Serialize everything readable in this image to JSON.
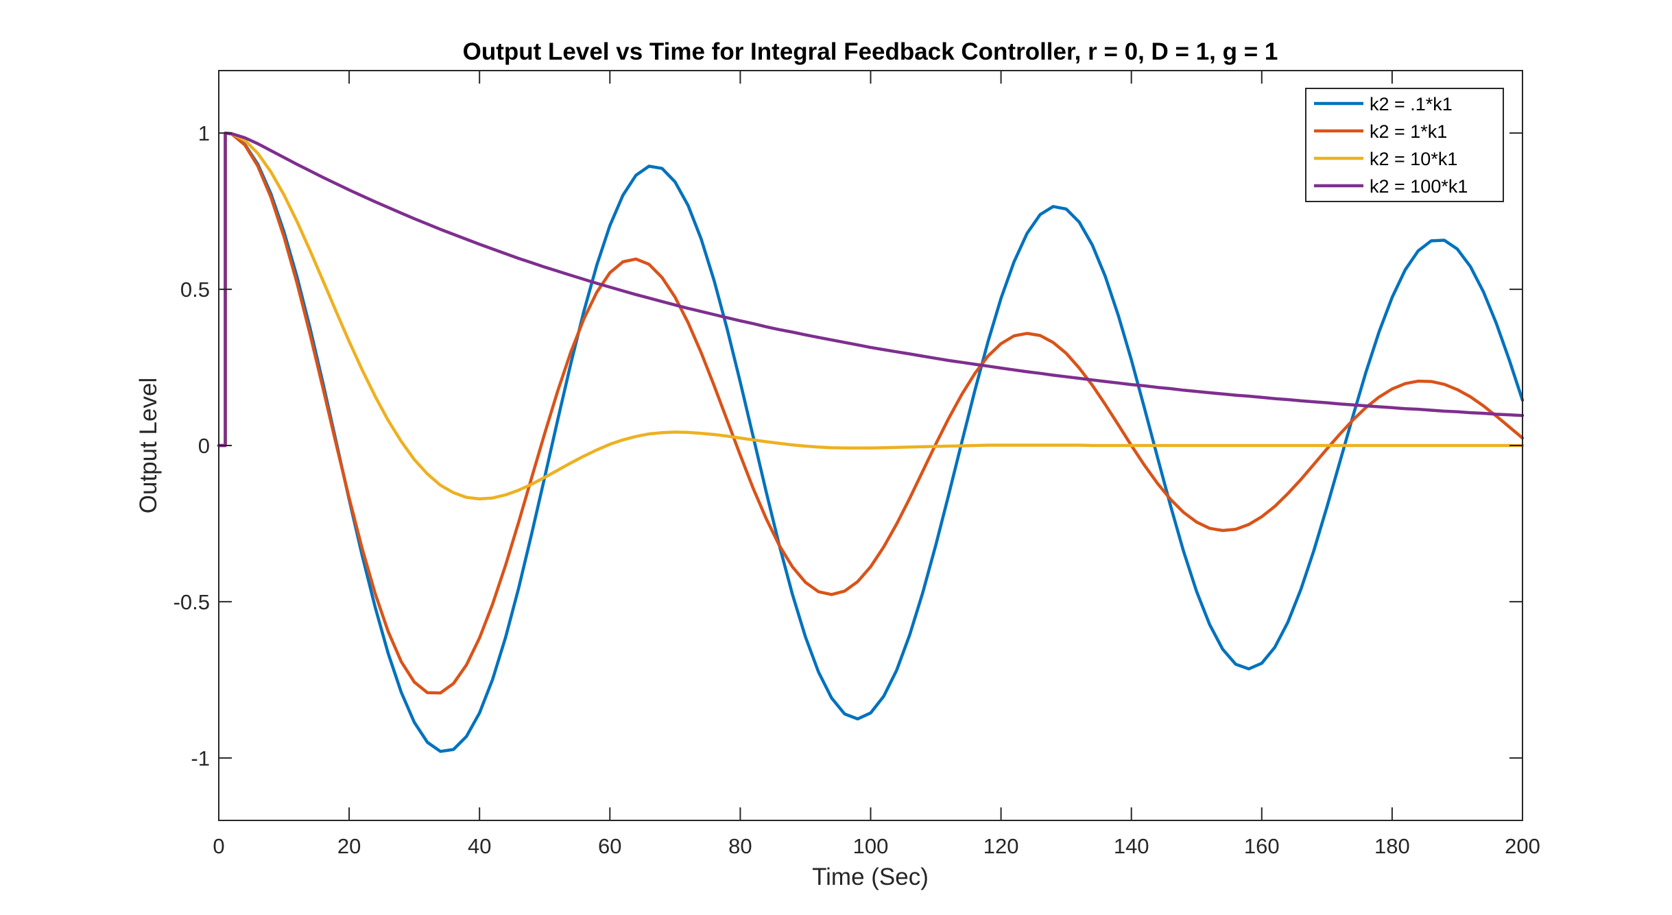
{
  "chart_data": {
    "type": "line",
    "title": "Output Level vs Time for Integral Feedback Controller, r = 0, D = 1, g = 1",
    "xlabel": "Time (Sec)",
    "ylabel": "Output Level",
    "xlim": [
      0,
      200
    ],
    "ylim": [
      -1.2,
      1.2
    ],
    "xticks": [
      0,
      20,
      40,
      60,
      80,
      100,
      120,
      140,
      160,
      180,
      200
    ],
    "xtick_labels": [
      "0",
      "20",
      "40",
      "60",
      "80",
      "100",
      "120",
      "140",
      "160",
      "180",
      "200"
    ],
    "yticks": [
      -1,
      -0.5,
      0,
      0.5,
      1
    ],
    "ytick_labels": [
      "-1",
      "-0.5",
      "0",
      "0.5",
      "1"
    ],
    "grid": false,
    "box": true,
    "legend_position": "top-right",
    "series": [
      {
        "name": "k2 = .1*k1",
        "color": "#0072BD",
        "x": [
          0,
          1,
          1,
          2,
          4,
          6,
          8,
          10,
          12,
          14,
          16,
          18,
          20,
          22,
          24,
          26,
          28,
          30,
          32,
          34,
          36,
          38,
          40,
          42,
          44,
          46,
          48,
          50,
          52,
          54,
          56,
          58,
          60,
          62,
          64,
          66,
          68,
          70,
          72,
          74,
          76,
          78,
          80,
          82,
          84,
          86,
          88,
          90,
          92,
          94,
          96,
          98,
          100,
          102,
          104,
          106,
          108,
          110,
          112,
          114,
          116,
          118,
          120,
          122,
          124,
          126,
          128,
          130,
          132,
          134,
          136,
          138,
          140,
          142,
          144,
          146,
          148,
          150,
          152,
          154,
          156,
          158,
          160,
          162,
          164,
          166,
          168,
          170,
          172,
          174,
          176,
          178,
          180,
          182,
          184,
          186,
          188,
          190,
          192,
          194,
          196,
          198,
          200
        ],
        "y": [
          0,
          0,
          1,
          0.997,
          0.964,
          0.9,
          0.806,
          0.684,
          0.54,
          0.376,
          0.198,
          0.013,
          -0.173,
          -0.352,
          -0.518,
          -0.666,
          -0.79,
          -0.886,
          -0.95,
          -0.979,
          -0.973,
          -0.931,
          -0.856,
          -0.749,
          -0.614,
          -0.457,
          -0.283,
          -0.101,
          0.083,
          0.262,
          0.429,
          0.578,
          0.704,
          0.801,
          0.865,
          0.894,
          0.887,
          0.844,
          0.768,
          0.661,
          0.527,
          0.372,
          0.203,
          0.027,
          -0.15,
          -0.32,
          -0.476,
          -0.613,
          -0.725,
          -0.808,
          -0.859,
          -0.875,
          -0.856,
          -0.803,
          -0.719,
          -0.606,
          -0.471,
          -0.318,
          -0.155,
          0.012,
          0.177,
          0.332,
          0.471,
          0.588,
          0.679,
          0.739,
          0.765,
          0.757,
          0.715,
          0.642,
          0.541,
          0.416,
          0.274,
          0.12,
          -0.037,
          -0.192,
          -0.338,
          -0.467,
          -0.573,
          -0.652,
          -0.7,
          -0.715,
          -0.697,
          -0.646,
          -0.566,
          -0.461,
          -0.336,
          -0.197,
          -0.051,
          0.095,
          0.236,
          0.364,
          0.474,
          0.562,
          0.623,
          0.655,
          0.657,
          0.629,
          0.573,
          0.492,
          0.39,
          0.272,
          0.145
        ]
      },
      {
        "name": "k2 = 1*k1",
        "color": "#D95319",
        "x": [
          0,
          1,
          1,
          2,
          4,
          6,
          8,
          10,
          12,
          14,
          16,
          18,
          20,
          22,
          24,
          26,
          28,
          30,
          32,
          34,
          36,
          38,
          40,
          42,
          44,
          46,
          48,
          50,
          52,
          54,
          56,
          58,
          60,
          62,
          64,
          66,
          68,
          70,
          72,
          74,
          76,
          78,
          80,
          82,
          84,
          86,
          88,
          90,
          92,
          94,
          96,
          98,
          100,
          102,
          104,
          106,
          108,
          110,
          112,
          114,
          116,
          118,
          120,
          122,
          124,
          126,
          128,
          130,
          132,
          134,
          136,
          138,
          140,
          142,
          144,
          146,
          148,
          150,
          152,
          154,
          156,
          158,
          160,
          162,
          164,
          166,
          168,
          170,
          172,
          174,
          176,
          178,
          180,
          182,
          184,
          186,
          188,
          190,
          192,
          194,
          196,
          198,
          200
        ],
        "y": [
          0,
          0,
          1,
          0.997,
          0.962,
          0.894,
          0.795,
          0.668,
          0.52,
          0.356,
          0.182,
          0.005,
          -0.168,
          -0.33,
          -0.474,
          -0.596,
          -0.692,
          -0.757,
          -0.791,
          -0.792,
          -0.762,
          -0.702,
          -0.616,
          -0.508,
          -0.383,
          -0.246,
          -0.103,
          0.039,
          0.175,
          0.299,
          0.405,
          0.491,
          0.553,
          0.588,
          0.597,
          0.58,
          0.538,
          0.475,
          0.393,
          0.297,
          0.191,
          0.08,
          -0.031,
          -0.138,
          -0.235,
          -0.32,
          -0.388,
          -0.438,
          -0.468,
          -0.477,
          -0.466,
          -0.436,
          -0.388,
          -0.325,
          -0.251,
          -0.169,
          -0.082,
          0.005,
          0.088,
          0.164,
          0.231,
          0.286,
          0.326,
          0.351,
          0.359,
          0.352,
          0.33,
          0.295,
          0.248,
          0.193,
          0.131,
          0.066,
          0.0,
          -0.063,
          -0.121,
          -0.172,
          -0.214,
          -0.245,
          -0.265,
          -0.272,
          -0.268,
          -0.253,
          -0.228,
          -0.195,
          -0.154,
          -0.109,
          -0.06,
          -0.011,
          0.037,
          0.082,
          0.122,
          0.155,
          0.181,
          0.198,
          0.206,
          0.205,
          0.196,
          0.179,
          0.156,
          0.127,
          0.094,
          0.059,
          0.024
        ]
      },
      {
        "name": "k2 = 10*k1",
        "color": "#EDB120",
        "x": [
          0,
          1,
          1,
          2,
          4,
          6,
          8,
          10,
          12,
          14,
          16,
          18,
          20,
          22,
          24,
          26,
          28,
          30,
          32,
          34,
          36,
          38,
          40,
          42,
          44,
          46,
          48,
          50,
          52,
          54,
          56,
          58,
          60,
          62,
          64,
          66,
          68,
          70,
          72,
          74,
          76,
          78,
          80,
          82,
          84,
          86,
          88,
          90,
          92,
          94,
          96,
          98,
          100,
          102,
          104,
          106,
          108,
          110,
          112,
          114,
          116,
          118,
          120,
          122,
          124,
          126,
          128,
          130,
          132,
          134,
          136,
          138,
          140,
          142,
          144,
          146,
          148,
          150,
          152,
          154,
          156,
          158,
          160,
          162,
          164,
          166,
          168,
          170,
          172,
          174,
          176,
          178,
          180,
          182,
          184,
          186,
          188,
          190,
          192,
          194,
          196,
          198,
          200
        ],
        "y": [
          0,
          0,
          1,
          0.998,
          0.977,
          0.935,
          0.876,
          0.802,
          0.717,
          0.624,
          0.527,
          0.429,
          0.333,
          0.242,
          0.157,
          0.08,
          0.013,
          -0.045,
          -0.091,
          -0.127,
          -0.151,
          -0.166,
          -0.171,
          -0.168,
          -0.158,
          -0.143,
          -0.124,
          -0.102,
          -0.079,
          -0.056,
          -0.034,
          -0.014,
          0.004,
          0.018,
          0.029,
          0.037,
          0.041,
          0.043,
          0.042,
          0.039,
          0.035,
          0.03,
          0.024,
          0.018,
          0.012,
          0.007,
          0.002,
          -0.002,
          -0.005,
          -0.007,
          -0.008,
          -0.008,
          -0.008,
          -0.007,
          -0.006,
          -0.005,
          -0.004,
          -0.003,
          -0.002,
          -0.001,
          0.0,
          0.001,
          0.001,
          0.001,
          0.001,
          0.001,
          0.001,
          0.001,
          0.001,
          0.0,
          0.0,
          0.0,
          0.0,
          0.0,
          0.0,
          0.0,
          0.0,
          0.0,
          0.0,
          0.0,
          0.0,
          0.0,
          0.0,
          0.0,
          0.0,
          0.0,
          0.0,
          0.0,
          0.0,
          0.0,
          0.0,
          0.0,
          0.0,
          0.0,
          0.0,
          0.0,
          0.0,
          0.0,
          0.0,
          0.0,
          0.0,
          0.0,
          0.0
        ]
      },
      {
        "name": "k2 = 100*k1",
        "color": "#7E2F8E",
        "x": [
          0,
          1,
          1,
          2,
          4,
          6,
          8,
          10,
          12,
          14,
          16,
          18,
          20,
          22,
          24,
          26,
          28,
          30,
          32,
          34,
          36,
          38,
          40,
          42,
          44,
          46,
          48,
          50,
          52,
          54,
          56,
          58,
          60,
          62,
          64,
          66,
          68,
          70,
          72,
          74,
          76,
          78,
          80,
          82,
          84,
          86,
          88,
          90,
          92,
          94,
          96,
          98,
          100,
          102,
          104,
          106,
          108,
          110,
          112,
          114,
          116,
          118,
          120,
          122,
          124,
          126,
          128,
          130,
          132,
          134,
          136,
          138,
          140,
          142,
          144,
          146,
          148,
          150,
          152,
          154,
          156,
          158,
          160,
          162,
          164,
          166,
          168,
          170,
          172,
          174,
          176,
          178,
          180,
          182,
          184,
          186,
          188,
          190,
          192,
          194,
          196,
          198,
          200
        ],
        "y": [
          0,
          0,
          1,
          0.998,
          0.985,
          0.966,
          0.944,
          0.922,
          0.9,
          0.879,
          0.858,
          0.838,
          0.818,
          0.799,
          0.78,
          0.762,
          0.744,
          0.726,
          0.709,
          0.692,
          0.676,
          0.66,
          0.644,
          0.629,
          0.614,
          0.599,
          0.585,
          0.571,
          0.558,
          0.545,
          0.532,
          0.519,
          0.507,
          0.495,
          0.483,
          0.472,
          0.461,
          0.45,
          0.439,
          0.429,
          0.419,
          0.409,
          0.399,
          0.39,
          0.38,
          0.371,
          0.363,
          0.354,
          0.346,
          0.338,
          0.33,
          0.322,
          0.314,
          0.307,
          0.3,
          0.293,
          0.286,
          0.279,
          0.272,
          0.266,
          0.26,
          0.254,
          0.248,
          0.242,
          0.236,
          0.231,
          0.225,
          0.22,
          0.215,
          0.21,
          0.205,
          0.2,
          0.195,
          0.191,
          0.186,
          0.182,
          0.177,
          0.173,
          0.169,
          0.165,
          0.161,
          0.158,
          0.154,
          0.15,
          0.147,
          0.143,
          0.14,
          0.137,
          0.133,
          0.13,
          0.127,
          0.124,
          0.121,
          0.118,
          0.116,
          0.113,
          0.11,
          0.108,
          0.105,
          0.103,
          0.1,
          0.098,
          0.096
        ]
      }
    ]
  }
}
